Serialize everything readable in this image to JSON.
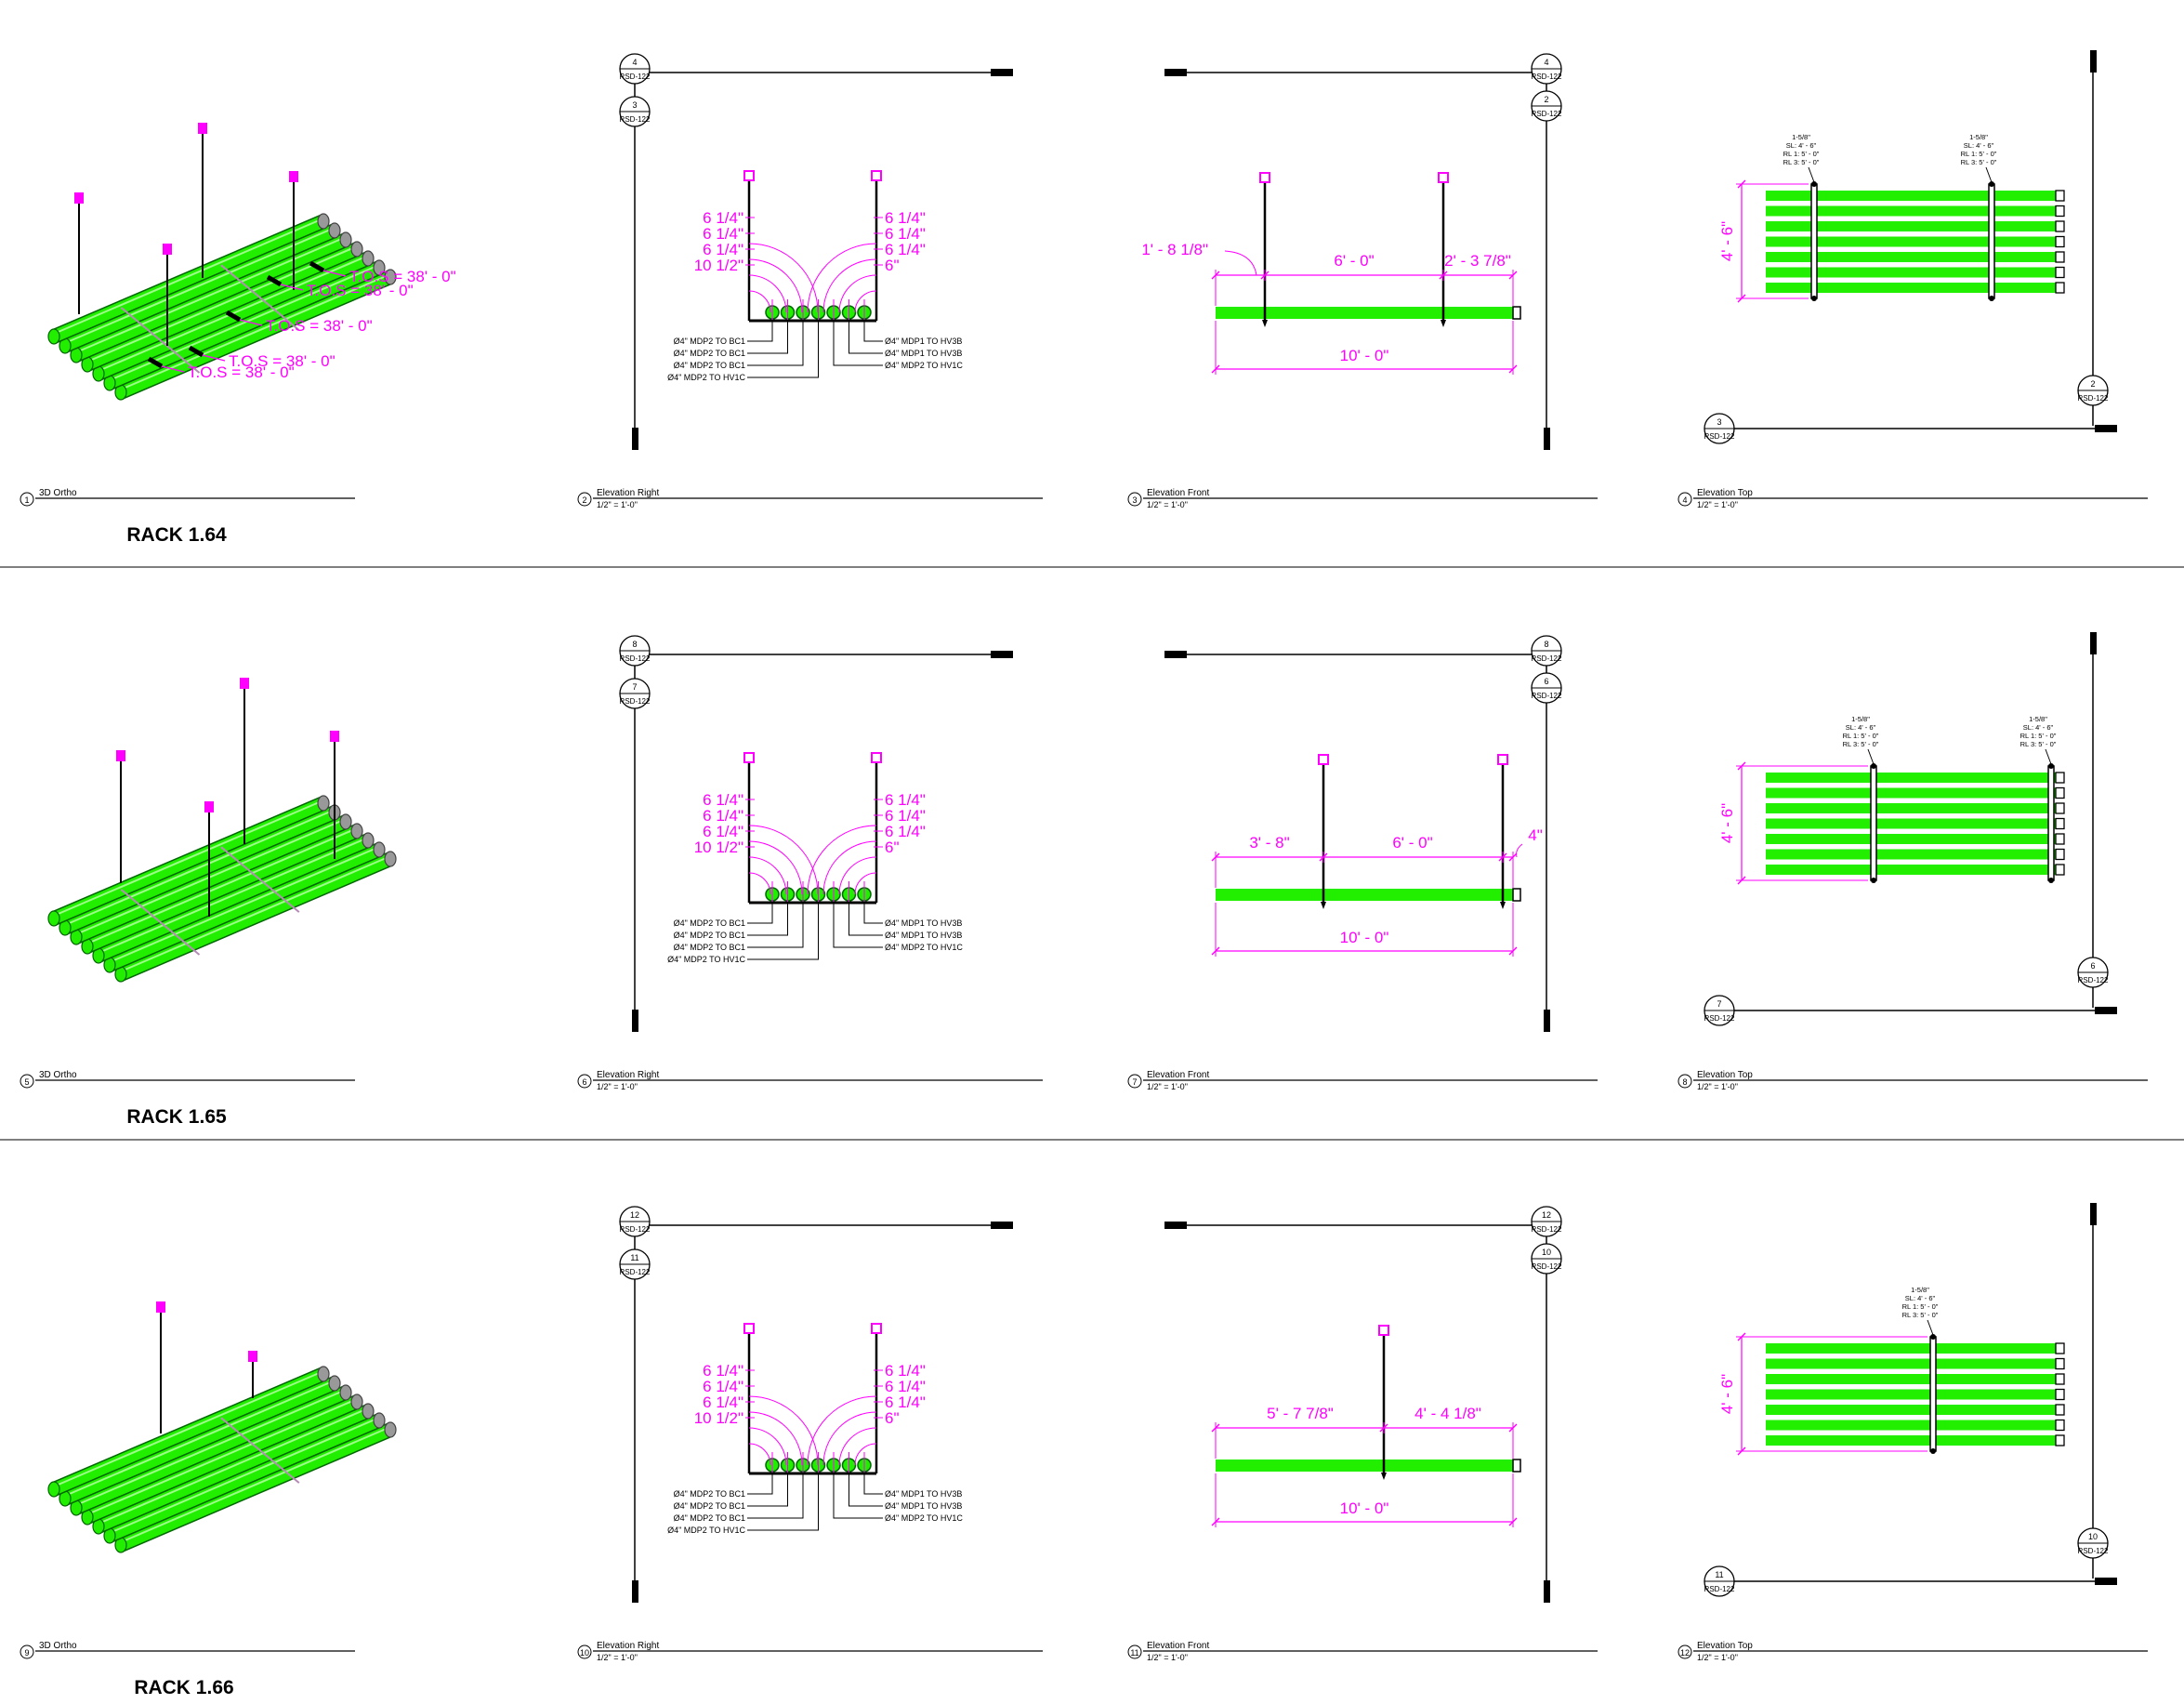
{
  "colors": {
    "pipe": "#22ee00",
    "pipe_edge": "#006600",
    "dim": "#ff00ff",
    "line": "#000000",
    "hanger": "#cc33cc",
    "rod_end": "#ff00ff"
  },
  "sheet_ref": "RSD-122",
  "racks": [
    {
      "title": "RACK 1.64",
      "views": [
        {
          "num": "1",
          "name": "3D Ortho",
          "scale": ""
        },
        {
          "num": "2",
          "name": "Elevation Right",
          "scale": "1/2\" = 1'-0\""
        },
        {
          "num": "3",
          "name": "Elevation Front",
          "scale": "1/2\" = 1'-0\""
        },
        {
          "num": "4",
          "name": "Elevation Top",
          "scale": "1/2\" = 1'-0\""
        }
      ],
      "ortho_tos": [
        "T.O.S = 38' - 0\"",
        "T.O.S = 38' - 0\""
      ],
      "right": {
        "top_tag": "4",
        "second_tag": "3",
        "left_dims": [
          "6 1/4\"",
          "6 1/4\"",
          "6 1/4\"",
          "10 1/2\""
        ],
        "right_dims": [
          "6 1/4\"",
          "6 1/4\"",
          "6 1/4\"",
          "6\""
        ],
        "left_labels": [
          "Ø4\" MDP2 TO BC1",
          "Ø4\" MDP2 TO BC1",
          "Ø4\" MDP2 TO BC1",
          "Ø4\" MDP2 TO HV1C"
        ],
        "right_labels": [
          "Ø4\" MDP1 TO HV3B",
          "Ø4\" MDP1 TO HV3B",
          "Ø4\" MDP2 TO HV1C"
        ]
      },
      "front": {
        "top_tag": "4",
        "second_tag": "2",
        "dims": [
          "1' - 8 1/8\"",
          "6' - 0\"",
          "2' - 3 7/8\""
        ],
        "total": "10' - 0\""
      },
      "top": {
        "tag_right": "2",
        "tag_left": "3",
        "width_dim": "4' - 6\"",
        "strut_notes": [
          [
            "1-5/8\"",
            "SL: 4' - 6\"",
            "RL 1: 5' - 0\"",
            "RL 3: 5' - 0\""
          ],
          [
            "1-5/8\"",
            "SL: 4' - 6\"",
            "RL 1: 5' - 0\"",
            "RL 3: 5' - 0\""
          ]
        ]
      }
    },
    {
      "title": "RACK 1.65",
      "views": [
        {
          "num": "5",
          "name": "3D Ortho",
          "scale": ""
        },
        {
          "num": "6",
          "name": "Elevation Right",
          "scale": "1/2\" = 1'-0\""
        },
        {
          "num": "7",
          "name": "Elevation Front",
          "scale": "1/2\" = 1'-0\""
        },
        {
          "num": "8",
          "name": "Elevation Top",
          "scale": "1/2\" = 1'-0\""
        }
      ],
      "ortho_tos": [
        "T.O.S = 38' - 0\"",
        "T.O.S = 38' - 0\""
      ],
      "right": {
        "top_tag": "8",
        "second_tag": "7",
        "left_dims": [
          "6 1/4\"",
          "6 1/4\"",
          "6 1/4\"",
          "10 1/2\""
        ],
        "right_dims": [
          "6 1/4\"",
          "6 1/4\"",
          "6 1/4\"",
          "6\""
        ],
        "left_labels": [
          "Ø4\" MDP2 TO BC1",
          "Ø4\" MDP2 TO BC1",
          "Ø4\" MDP2 TO BC1",
          "Ø4\" MDP2 TO HV1C"
        ],
        "right_labels": [
          "Ø4\" MDP1 TO HV3B",
          "Ø4\" MDP1 TO HV3B",
          "Ø4\" MDP2 TO HV1C"
        ]
      },
      "front": {
        "top_tag": "8",
        "second_tag": "6",
        "dims": [
          "3' - 8\"",
          "6' - 0\"",
          "4\""
        ],
        "total": "10' - 0\""
      },
      "top": {
        "tag_right": "6",
        "tag_left": "7",
        "width_dim": "4' - 6\"",
        "strut_notes": [
          [
            "1-5/8\"",
            "SL: 4' - 6\"",
            "RL 1: 5' - 0\"",
            "RL 3: 5' - 0\""
          ],
          [
            "1-5/8\"",
            "SL: 4' - 6\"",
            "RL 1: 5' - 0\"",
            "RL 3: 5' - 0\""
          ]
        ]
      }
    },
    {
      "title": "RACK 1.66",
      "views": [
        {
          "num": "9",
          "name": "3D Ortho",
          "scale": ""
        },
        {
          "num": "10",
          "name": "Elevation Right",
          "scale": "1/2\" = 1'-0\""
        },
        {
          "num": "11",
          "name": "Elevation Front",
          "scale": "1/2\" = 1'-0\""
        },
        {
          "num": "12",
          "name": "Elevation Top",
          "scale": "1/2\" = 1'-0\""
        }
      ],
      "ortho_tos": [
        "T.O.S = 38' - 0\""
      ],
      "right": {
        "top_tag": "12",
        "second_tag": "11",
        "left_dims": [
          "6 1/4\"",
          "6 1/4\"",
          "6 1/4\"",
          "10 1/2\""
        ],
        "right_dims": [
          "6 1/4\"",
          "6 1/4\"",
          "6 1/4\"",
          "6\""
        ],
        "left_labels": [
          "Ø4\" MDP2 TO BC1",
          "Ø4\" MDP2 TO BC1",
          "Ø4\" MDP2 TO BC1",
          "Ø4\" MDP2 TO HV1C"
        ],
        "right_labels": [
          "Ø4\" MDP1 TO HV3B",
          "Ø4\" MDP1 TO HV3B",
          "Ø4\" MDP2 TO HV1C"
        ]
      },
      "front": {
        "top_tag": "12",
        "second_tag": "10",
        "dims": [
          "5' - 7 7/8\"",
          "4' - 4 1/8\""
        ],
        "total": "10' - 0\""
      },
      "top": {
        "tag_right": "10",
        "tag_left": "11",
        "width_dim": "4' - 6\"",
        "strut_notes": [
          [
            "1-5/8\"",
            "SL: 4' - 6\"",
            "RL 1: 5' - 0\"",
            "RL 3: 5' - 0\""
          ]
        ]
      }
    }
  ]
}
